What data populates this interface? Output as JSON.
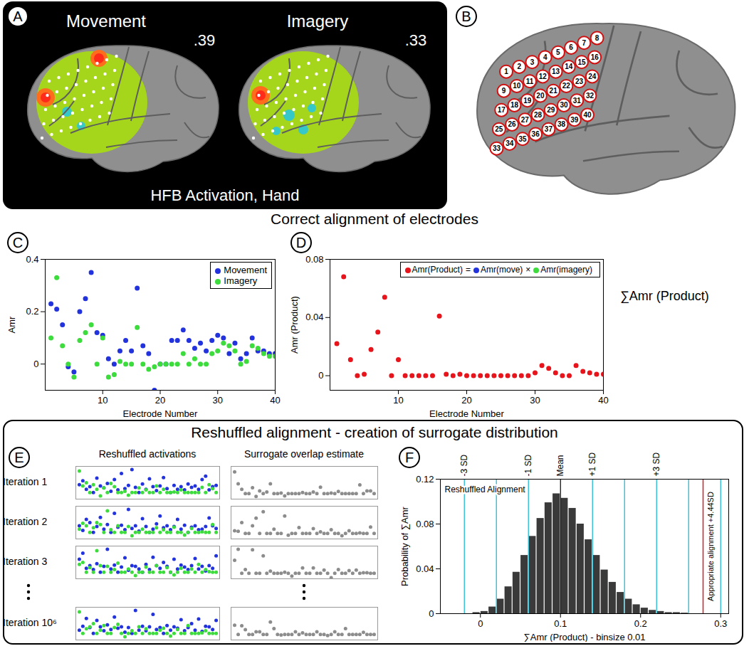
{
  "figure": {
    "section_titles": [
      "Correct alignment of electrodes",
      "Reshuffled alignment - creation of surrogate distribution"
    ],
    "panel_A": {
      "letter": "A",
      "caption": "HFB Activation, Hand",
      "views": [
        {
          "title": "Movement",
          "score": ".39"
        },
        {
          "title": "Imagery",
          "score": ".33"
        }
      ]
    },
    "panel_B": {
      "letter": "B",
      "electrodes": [
        1,
        2,
        3,
        4,
        5,
        6,
        7,
        8,
        9,
        10,
        11,
        12,
        13,
        14,
        15,
        16,
        17,
        18,
        19,
        20,
        21,
        22,
        23,
        24,
        25,
        26,
        27,
        28,
        29,
        30,
        31,
        32,
        33,
        34,
        35,
        36,
        37,
        38,
        39,
        40
      ]
    }
  },
  "chart_data": [
    {
      "panel": "C",
      "type": "scatter",
      "x_label": "Electrode Number",
      "y_label": "Amr",
      "x": [
        1,
        2,
        3,
        4,
        5,
        6,
        7,
        8,
        9,
        10,
        11,
        12,
        13,
        14,
        15,
        16,
        17,
        18,
        19,
        20,
        21,
        22,
        23,
        24,
        25,
        26,
        27,
        28,
        29,
        30,
        31,
        32,
        33,
        34,
        35,
        36,
        37,
        38,
        39,
        40
      ],
      "xlim": [
        0,
        40
      ],
      "xticks": [
        10,
        20,
        30,
        40
      ],
      "ylim": [
        -0.1,
        0.4
      ],
      "yticks": [
        0,
        0.2,
        0.4
      ],
      "legend": "top-right",
      "marker": "circle",
      "series": [
        {
          "name": "Movement",
          "color": "#2233dd",
          "values": [
            0.23,
            0.21,
            0.15,
            -0.01,
            -0.03,
            0.2,
            0.25,
            0.35,
            0.12,
            0.11,
            0.02,
            0.0,
            0.05,
            0.09,
            0.05,
            0.29,
            0.07,
            0.04,
            -0.1,
            0.0,
            0.0,
            0.09,
            0.09,
            0.13,
            0.09,
            0.06,
            0.08,
            0.05,
            0.09,
            0.11,
            0.1,
            0.04,
            0.08,
            0.02,
            0.04,
            0.1,
            0.05,
            0.05,
            0.04,
            0.04
          ]
        },
        {
          "name": "Imagery",
          "color": "#3cdc3c",
          "values": [
            0.1,
            0.33,
            0.07,
            0.0,
            -0.05,
            0.09,
            0.12,
            0.15,
            0.0,
            0.1,
            -0.05,
            -0.04,
            0.01,
            0.0,
            0.0,
            0.14,
            0.0,
            -0.02,
            -0.01,
            0.0,
            0.0,
            0.0,
            0.0,
            0.04,
            0.0,
            0.02,
            0.0,
            0.0,
            0.04,
            0.05,
            0.08,
            0.07,
            0.05,
            0.0,
            0.01,
            0.07,
            0.06,
            0.04,
            0.03,
            0.03
          ]
        }
      ]
    },
    {
      "panel": "D",
      "type": "scatter",
      "x_label": "Electrode Number",
      "y_label": "Amr (Product)",
      "x": [
        1,
        2,
        3,
        4,
        5,
        6,
        7,
        8,
        9,
        10,
        11,
        12,
        13,
        14,
        15,
        16,
        17,
        18,
        19,
        20,
        21,
        22,
        23,
        24,
        25,
        26,
        27,
        28,
        29,
        30,
        31,
        32,
        33,
        34,
        35,
        36,
        37,
        38,
        39,
        40
      ],
      "xlim": [
        0,
        40
      ],
      "xticks": [
        10,
        20,
        30,
        40
      ],
      "ylim": [
        -0.01,
        0.08
      ],
      "yticks": [
        0,
        0.04,
        0.08
      ],
      "marker": "circle",
      "series": [
        {
          "color": "#e8141c",
          "values": [
            0.022,
            0.068,
            0.011,
            0.0,
            0.001,
            0.018,
            0.03,
            0.054,
            0.0,
            0.011,
            0.0,
            0.0,
            0.0,
            0.0,
            0.0,
            0.041,
            0.001,
            0.0,
            0.001,
            0.0,
            0.0,
            0.0,
            0.0,
            0.0,
            0.0,
            0.0,
            0.0,
            0.0,
            0.0,
            0.002,
            0.007,
            0.005,
            0.002,
            0.0,
            0.0,
            0.007,
            0.003,
            0.002,
            0.001,
            0.001
          ]
        }
      ],
      "equation": [
        {
          "text": "Amr(Product)",
          "color": "#e8141c"
        },
        {
          "text": "="
        },
        {
          "text": "Amr(move)",
          "color": "#2233dd"
        },
        {
          "text": "×"
        },
        {
          "text": "Amr(imagery)",
          "color": "#3cdc3c"
        }
      ],
      "annotation": "∑Amr (Product)"
    },
    {
      "panel": "E",
      "type": "scatter",
      "columns": [
        "Reshuffled activations",
        "Surrogate overlap estimate"
      ],
      "x": [
        1,
        2,
        3,
        4,
        5,
        6,
        7,
        8,
        9,
        10,
        11,
        12,
        13,
        14,
        15,
        16,
        17,
        18,
        19,
        20,
        21,
        22,
        23,
        24,
        25,
        26,
        27,
        28,
        29,
        30,
        31,
        32,
        33,
        34,
        35,
        36,
        37,
        38,
        39,
        40
      ],
      "xlim": [
        0,
        41
      ],
      "ylim": [
        -0.1,
        0.4
      ],
      "surrogate_ylim": [
        -0.01,
        0.05
      ],
      "tick_labels": false,
      "series_colors": {
        "movement": "#2233dd",
        "imagery": "#3cdc3c",
        "surrogate": "#8c8c8c"
      },
      "iterations": [
        {
          "label": "Iteration 1",
          "movement": [
            0.12,
            0.18,
            0.05,
            0.09,
            0.0,
            0.22,
            0.1,
            0.07,
            0.14,
            0.02,
            0.2,
            0.04,
            0.29,
            0.06,
            0.11,
            0.35,
            0.08,
            0.0,
            0.13,
            0.05,
            0.21,
            0.09,
            0.03,
            0.1,
            0.23,
            0.06,
            0.0,
            0.11,
            0.05,
            0.09,
            0.04,
            0.13,
            0.08,
            0.1,
            0.05,
            0.2,
            0.25,
            0.04,
            0.09,
            0.11
          ],
          "imagery": [
            0.33,
            0.1,
            0.15,
            0.0,
            0.12,
            0.05,
            -0.05,
            0.07,
            0.0,
            0.14,
            0.09,
            0.0,
            0.0,
            0.02,
            -0.04,
            0.0,
            0.0,
            0.07,
            0.0,
            0.04,
            0.0,
            0.0,
            0.1,
            0.0,
            0.05,
            0.0,
            0.0,
            0.01,
            0.0,
            0.04,
            0.0,
            0.0,
            0.0,
            0.0,
            0.0,
            0.08,
            0.0,
            0.12,
            0.06,
            0.0
          ],
          "surrogate": [
            0.04,
            0.018,
            0.008,
            0,
            0,
            0.011,
            -0.005,
            0.005,
            0,
            0.003,
            0.018,
            0,
            0,
            0.001,
            -0.004,
            0,
            0,
            0,
            0,
            0.002,
            0,
            0,
            0.003,
            0,
            0.012,
            0,
            0,
            0.001,
            0,
            0.004,
            0,
            0,
            0,
            0,
            0,
            0.016,
            0,
            0.005,
            0.005,
            0
          ]
        },
        {
          "label": "Iteration 2",
          "movement": [
            0.1,
            0.03,
            0.2,
            0.15,
            0.0,
            0.09,
            0.23,
            0.05,
            0.12,
            0.0,
            0.29,
            0.08,
            0.11,
            0.04,
            0.35,
            0.06,
            0.1,
            0.02,
            0.21,
            0.09,
            0.0,
            0.05,
            0.13,
            0.25,
            0.07,
            0.1,
            0.04,
            0.09,
            0.2,
            0.05,
            0.11,
            0.0,
            0.08,
            0.1,
            0.04,
            0.05,
            0.09,
            0.22,
            0.1,
            0.06
          ],
          "imagery": [
            0.05,
            0.14,
            0.1,
            0.0,
            0.07,
            0.15,
            0.12,
            0.0,
            0.33,
            0.04,
            0.0,
            0.1,
            0.0,
            0.0,
            0.09,
            -0.05,
            0.0,
            0.0,
            0.05,
            0.0,
            0.0,
            0.0,
            0.07,
            0.0,
            0.04,
            0.0,
            0.0,
            0.08,
            0.0,
            0.0,
            -0.04,
            0.0,
            0.06,
            0.0,
            0.0,
            0.01,
            0.0,
            0.0,
            0.12,
            0.0
          ],
          "surrogate": [
            0.005,
            0.004,
            0.02,
            0,
            0,
            0.014,
            0.028,
            0,
            0.04,
            0,
            0,
            0.008,
            0,
            0,
            0.032,
            -0.003,
            0,
            0,
            0.011,
            0,
            0,
            0,
            0.009,
            0,
            0.003,
            0,
            0,
            0.007,
            0,
            0,
            -0.004,
            0,
            0.005,
            0,
            0,
            0.001,
            0,
            0,
            0.012,
            0
          ]
        },
        {
          "label": "Iteration 3",
          "movement": [
            0.2,
            0.29,
            0.06,
            0.1,
            0.04,
            0.13,
            0.0,
            0.09,
            0.35,
            0.05,
            0.11,
            0.0,
            0.08,
            0.22,
            0.03,
            0.1,
            0.09,
            0.05,
            0.0,
            0.12,
            0.04,
            0.23,
            0.1,
            0.06,
            0.15,
            0.09,
            0.0,
            0.2,
            0.05,
            0.11,
            0.08,
            0.04,
            0.1,
            0.21,
            0.05,
            0.09,
            0.02,
            0.1,
            0.06,
            0.25
          ],
          "imagery": [
            0.12,
            0.15,
            0.0,
            0.07,
            0.0,
            0.33,
            0.1,
            0.0,
            0.09,
            0.0,
            0.04,
            0.14,
            0.0,
            0.0,
            0.05,
            0.0,
            -0.05,
            0.0,
            0.0,
            0.08,
            0.0,
            0.0,
            0.1,
            0.0,
            0.0,
            0.07,
            0.0,
            -0.04,
            0.0,
            0.06,
            0.0,
            0.0,
            0.05,
            0.0,
            0.12,
            0.0,
            0.04,
            0.01,
            0.0,
            0.0
          ],
          "surrogate": [
            0.024,
            0.044,
            0,
            0.007,
            0,
            0.043,
            0,
            0,
            0.032,
            0,
            0.004,
            0,
            0,
            0,
            0.002,
            0,
            -0.005,
            0,
            0,
            0.01,
            0,
            0,
            0.01,
            0,
            0,
            0.006,
            0,
            -0.008,
            0,
            0.007,
            0,
            0,
            0.005,
            0,
            0.006,
            0,
            0.001,
            0.001,
            0,
            0
          ]
        },
        {
          "label": "Iteration 10⁶",
          "movement": [
            0.05,
            0.11,
            0.23,
            0.09,
            0.0,
            0.2,
            0.1,
            0.04,
            0.13,
            0.06,
            0.25,
            0.08,
            0.1,
            0.02,
            0.09,
            0.0,
            0.35,
            0.05,
            0.11,
            0.04,
            0.1,
            0.29,
            0.06,
            0.09,
            0.0,
            0.12,
            0.05,
            0.1,
            0.08,
            0.21,
            0.04,
            0.09,
            0.15,
            0.05,
            0.22,
            0.03,
            0.11,
            0.1,
            0.06,
            0.2
          ],
          "imagery": [
            0.33,
            0.0,
            0.07,
            0.1,
            0.15,
            0.0,
            0.05,
            0.12,
            0.0,
            0.0,
            0.09,
            0.14,
            0.0,
            -0.05,
            0.0,
            0.04,
            0.0,
            0.1,
            0.0,
            0.07,
            0.0,
            0.0,
            0.0,
            0.05,
            0.08,
            0.0,
            -0.04,
            0.0,
            0.06,
            0.0,
            0.0,
            0.12,
            0.0,
            0.0,
            0.0,
            0.01,
            0.04,
            0.0,
            0.0,
            0.0
          ],
          "surrogate": [
            0.017,
            0,
            0.016,
            0.009,
            0,
            0,
            0.005,
            0.005,
            0,
            0,
            0.023,
            0.011,
            0,
            -0.001,
            0,
            0,
            0,
            0.005,
            0,
            0.003,
            0,
            0,
            0,
            0.005,
            0,
            0,
            -0.002,
            0,
            0.005,
            0,
            0,
            0.011,
            0,
            0,
            0,
            0,
            0.004,
            0,
            0,
            0
          ]
        }
      ]
    },
    {
      "panel": "F",
      "type": "histogram",
      "x_label": "∑Amr (Product) - binsize 0.01",
      "y_label": "Probability of ∑Amr",
      "bins": [
        -0.01,
        0,
        0.01,
        0.02,
        0.03,
        0.04,
        0.05,
        0.06,
        0.07,
        0.08,
        0.09,
        0.1,
        0.11,
        0.12,
        0.13,
        0.14,
        0.15,
        0.16,
        0.17,
        0.18,
        0.19,
        0.2,
        0.21,
        0.22,
        0.23,
        0.24,
        0.25,
        0.26
      ],
      "counts": [
        0.001,
        0.002,
        0.006,
        0.013,
        0.024,
        0.037,
        0.052,
        0.069,
        0.085,
        0.099,
        0.107,
        0.103,
        0.094,
        0.08,
        0.066,
        0.052,
        0.039,
        0.028,
        0.019,
        0.013,
        0.008,
        0.005,
        0.003,
        0.002,
        0.001,
        0.001,
        0.0005
      ],
      "color": "#3a3a3a",
      "xlim": [
        -0.05,
        0.31
      ],
      "xticks": [
        0,
        0.1,
        0.2,
        0.3
      ],
      "ylim": [
        0,
        0.12
      ],
      "yticks": [
        0,
        0.04,
        0.08,
        0.12
      ],
      "mean": {
        "value": 0.1,
        "label": "Mean"
      },
      "sd_lines": [
        -0.02,
        0.02,
        0.06,
        0.14,
        0.18,
        0.22,
        0.26,
        0.3
      ],
      "sd_color": "#39c6dc",
      "sd_labels": [
        {
          "value": -0.02,
          "label": "-3 SD"
        },
        {
          "value": 0.06,
          "label": "-1 SD"
        },
        {
          "value": 0.14,
          "label": "+1 SD"
        },
        {
          "value": 0.22,
          "label": "+3 SD"
        }
      ],
      "alignment": {
        "value": 0.278,
        "label": "Appropriate alignment +4.44SD",
        "color": "#e8141c"
      },
      "annotation": "Reshuffled Alignment"
    }
  ]
}
